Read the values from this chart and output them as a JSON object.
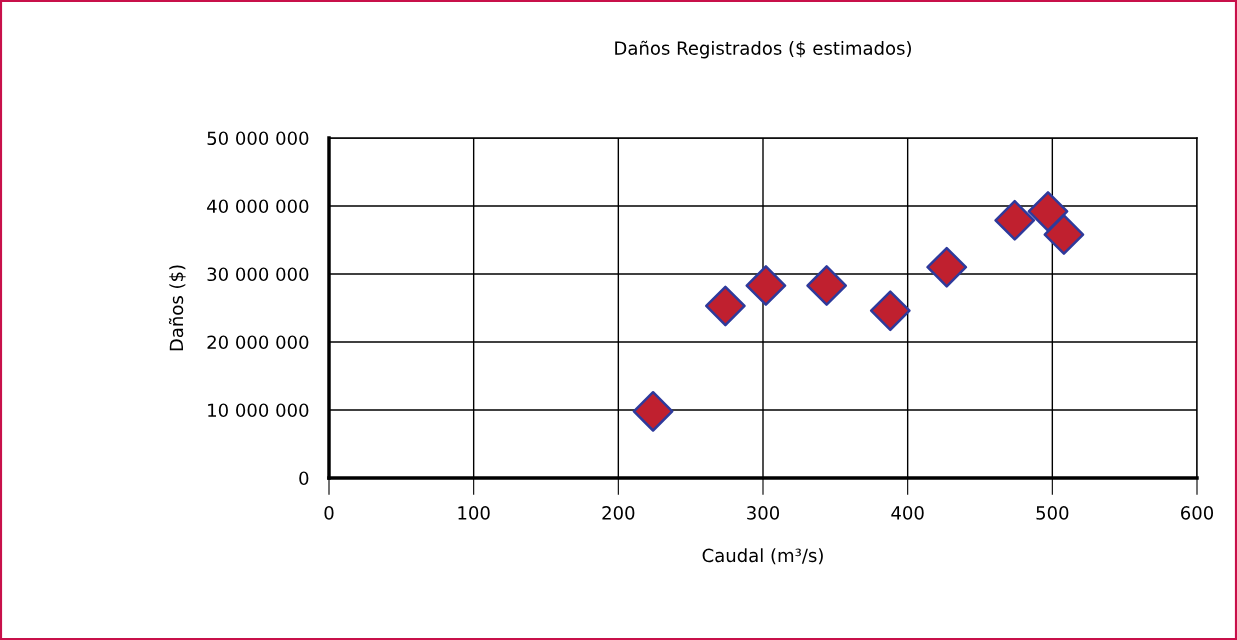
{
  "chart_data": {
    "type": "scatter",
    "title": "Daños Registrados ($ estimados)",
    "xlabel": "Caudal (m³/s)",
    "ylabel": "Daños ($)",
    "xlim": [
      0,
      600
    ],
    "xticks": [
      0,
      100,
      200,
      300,
      400,
      500,
      600
    ],
    "ylim": [
      0,
      50000000
    ],
    "yticks": [
      0,
      {
        "value": 10000000,
        "label": "10 000 000"
      },
      {
        "value": 20000000,
        "label": "20 000 000"
      },
      {
        "value": 30000000,
        "label": "30 000 000"
      },
      {
        "value": 40000000,
        "label": "40 000 000"
      },
      {
        "value": 50000000,
        "label": "50 000 000"
      }
    ],
    "grid": true,
    "marker": "diamond",
    "series": [
      {
        "color": "#c0202f",
        "x": [
          224,
          274,
          302,
          344,
          388,
          427,
          474,
          497,
          508
        ],
        "values": [
          9800000,
          25300000,
          28300000,
          28300000,
          24600000,
          31000000,
          37900000,
          39200000,
          35800000
        ]
      }
    ]
  }
}
